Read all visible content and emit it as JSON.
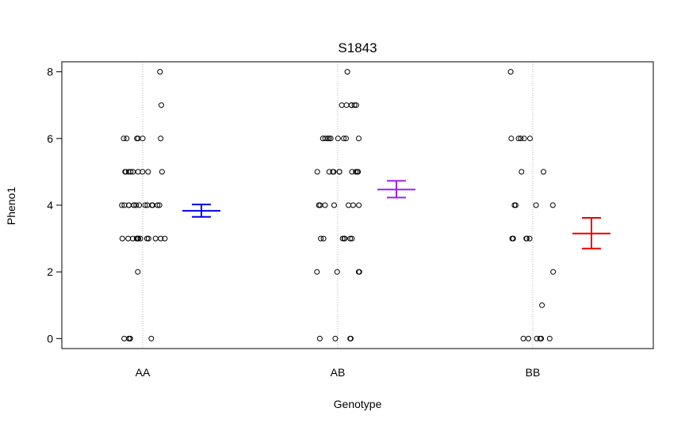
{
  "chart_data": {
    "type": "scatter",
    "title": "S1843",
    "xlabel": "Genotype",
    "ylabel": "Pheno1",
    "categories": [
      "AA",
      "AB",
      "BB"
    ],
    "yticks": [
      0,
      2,
      4,
      6,
      8
    ],
    "ylim": [
      -0.3,
      8.3
    ],
    "grid": "vertical dotted lines at each genotype",
    "series": [
      {
        "category": "AA",
        "values": [
          8,
          7,
          6,
          6,
          6,
          6,
          6,
          6,
          5,
          5,
          5,
          5,
          5,
          5,
          5,
          5,
          5,
          4,
          4,
          4,
          4,
          4,
          4,
          4,
          4,
          4,
          4,
          4,
          4,
          4,
          4,
          3,
          3,
          3,
          3,
          3,
          3,
          3,
          3,
          3,
          3,
          3,
          3,
          3,
          3,
          2,
          0,
          0,
          0,
          0,
          0
        ],
        "mean": 3.83,
        "se_low": 3.65,
        "se_high": 4.02,
        "color": "#0000ee"
      },
      {
        "category": "AB",
        "values": [
          8,
          7,
          7,
          7,
          7,
          7,
          7,
          6,
          6,
          6,
          6,
          6,
          6,
          6,
          6,
          6,
          5,
          5,
          5,
          5,
          5,
          5,
          5,
          5,
          5,
          5,
          4,
          4,
          4,
          4,
          4,
          4,
          4,
          3,
          3,
          3,
          3,
          3,
          3,
          3,
          2,
          2,
          2,
          2,
          0,
          0,
          0,
          0
        ],
        "mean": 4.47,
        "se_low": 4.23,
        "se_high": 4.73,
        "color": "#a020f0"
      },
      {
        "category": "BB",
        "values": [
          8,
          6,
          6,
          6,
          6,
          6,
          5,
          5,
          4,
          4,
          4,
          4,
          3,
          3,
          3,
          3,
          3,
          2,
          1,
          0,
          0,
          0,
          0,
          0,
          0
        ],
        "mean": 3.15,
        "se_low": 2.7,
        "se_high": 3.62,
        "color": "#ee0000"
      }
    ]
  }
}
